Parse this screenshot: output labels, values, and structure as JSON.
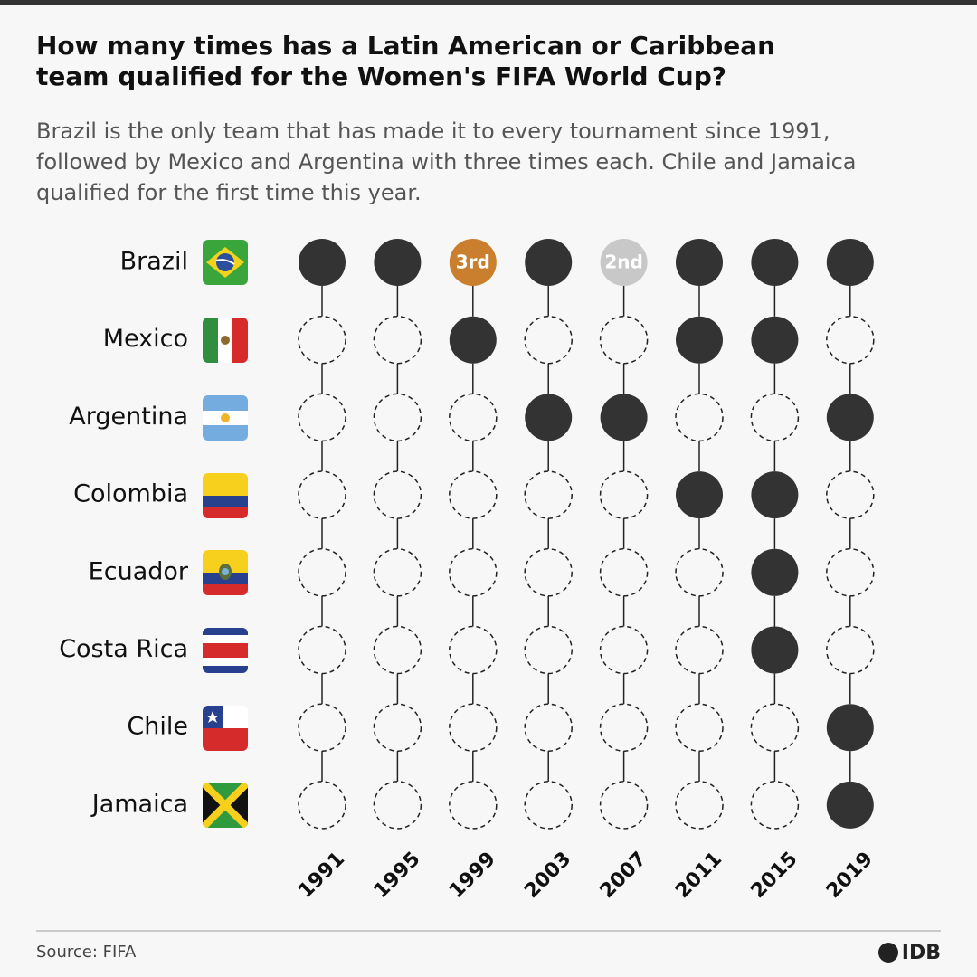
{
  "chart_data": {
    "type": "dotmatrix",
    "title": "How many times has a Latin American or Caribbean team qualified for the Women's FIFA World Cup?",
    "subtitle": "Brazil is the only team that has made it to every tournament since 1991, followed by Mexico and Argentina with three times each. Chile and Jamaica qualified for the first time this year.",
    "x": [
      "1991",
      "1995",
      "1999",
      "2003",
      "2007",
      "2011",
      "2015",
      "2019"
    ],
    "filled_color": "#333333",
    "empty_color": "#222222",
    "series": [
      {
        "name": "Brazil",
        "values": [
          1,
          1,
          1,
          1,
          1,
          1,
          1,
          1
        ],
        "annotations": [
          {
            "year": "1999",
            "label": "3rd",
            "color": "#c97f2e"
          },
          {
            "year": "2007",
            "label": "2nd",
            "color": "#c8c8c8"
          }
        ]
      },
      {
        "name": "Mexico",
        "values": [
          0,
          0,
          1,
          0,
          0,
          1,
          1,
          0
        ]
      },
      {
        "name": "Argentina",
        "values": [
          0,
          0,
          0,
          1,
          1,
          0,
          0,
          1
        ]
      },
      {
        "name": "Colombia",
        "values": [
          0,
          0,
          0,
          0,
          0,
          1,
          1,
          0
        ]
      },
      {
        "name": "Ecuador",
        "values": [
          0,
          0,
          0,
          0,
          0,
          0,
          1,
          0
        ]
      },
      {
        "name": "Costa Rica",
        "values": [
          0,
          0,
          0,
          0,
          0,
          0,
          1,
          0
        ]
      },
      {
        "name": "Chile",
        "values": [
          0,
          0,
          0,
          0,
          0,
          0,
          0,
          1
        ]
      },
      {
        "name": "Jamaica",
        "values": [
          0,
          0,
          0,
          0,
          0,
          0,
          0,
          1
        ]
      }
    ],
    "source": "Source: FIFA",
    "logo": "IDB"
  }
}
